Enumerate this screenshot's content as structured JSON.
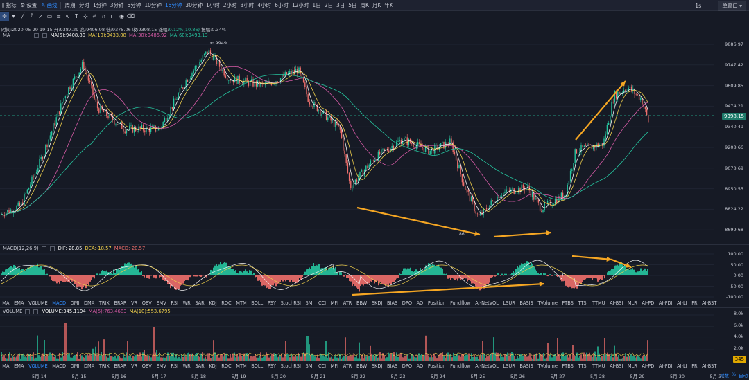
{
  "toolbar": {
    "indicators": "指标",
    "settings": "设置",
    "drawline": "画线",
    "period": "周期",
    "timeframes": [
      "分时",
      "1分钟",
      "3分钟",
      "5分钟",
      "10分钟",
      "15分钟",
      "30分钟",
      "1小时",
      "2小时",
      "3小时",
      "4小时",
      "6小时",
      "12小时",
      "1日",
      "2日",
      "3日",
      "5日",
      "周K",
      "月K",
      "年K"
    ],
    "active_timeframe": "15分钟",
    "right_interval": "1s",
    "window_select": "单窗口"
  },
  "ohlc": {
    "time_label": "时间:2020-05-29 19:15",
    "open": "开:9387.29",
    "high": "高:9406.98",
    "low": "低:9375.06",
    "close": "收:9398.15",
    "change_label": "涨幅:",
    "change_value": "0.12%(10.86)",
    "amplitude": "振幅:0.34%"
  },
  "ma_legend": {
    "name": "MA",
    "ma5": "MA(5):9408.80",
    "ma10": "MA(10):9433.08",
    "ma30": "MA(30):9486.92",
    "ma60": "MA(60):9493.13"
  },
  "price_axis": [
    "9886.97",
    "9747.42",
    "9609.85",
    "9474.21",
    "9340.49",
    "9208.66",
    "9078.69",
    "8950.55",
    "8824.22",
    "8699.68"
  ],
  "current_price": "9398.15",
  "high_marker": "9949",
  "low_marker": "86",
  "macd_legend": {
    "name": "MACD(12,26,9)",
    "dif": "DIF:-28.85",
    "dea": "DEA:-18.57",
    "macd": "MACD:-20.57"
  },
  "macd_axis": [
    "100.00",
    "50.00",
    "0.00",
    "-50.00",
    "-100.00"
  ],
  "indicator_tabs": [
    "MA",
    "EMA",
    "VOLUME",
    "MACD",
    "DMI",
    "DMA",
    "TRIX",
    "BRAR",
    "VR",
    "OBV",
    "EMV",
    "RSI",
    "WR",
    "SAR",
    "KDJ",
    "ROC",
    "MTM",
    "BOLL",
    "PSY",
    "StochRSI",
    "SMI",
    "CCI",
    "MFI",
    "ATR",
    "BBW",
    "SKDJ",
    "BIAS",
    "DPO",
    "AO",
    "Position",
    "Fundflow",
    "AI-NetVOL",
    "LSUR",
    "BASIS",
    "TVolume",
    "FTBS",
    "TTSI",
    "TTMU",
    "AI-BSI",
    "MLR",
    "AI-PD",
    "AI-FDI",
    "AI-LI",
    "FR",
    "AI-BST"
  ],
  "active_tab_top": "MACD",
  "active_tab_bottom": "VOLUME",
  "volume_legend": {
    "name": "VOLUME",
    "volume": "VOLUME:345.1194",
    "ma5": "MA(5):763.4683",
    "ma10": "MA(10):553.6795"
  },
  "volume_axis": [
    "8.0k",
    "6.0k",
    "4.0k",
    "2.0k"
  ],
  "current_volume": "345",
  "dates": [
    "5月 14",
    "5月 15",
    "5月 16",
    "5月 17",
    "5月 18",
    "5月 19",
    "5月 20",
    "5月 21",
    "5月 22",
    "5月 23",
    "5月 24",
    "5月 25",
    "5月 26",
    "5月 27",
    "5月 28",
    "5月 29",
    "5月 30",
    "5月 31"
  ],
  "bottom_controls": [
    "对数",
    "%",
    "自动"
  ],
  "colors": {
    "up": "#26c6a0",
    "down": "#ef6f6c",
    "ma5": "#f5f5f5",
    "ma10": "#f0d04c",
    "ma30": "#d65ba6",
    "ma60": "#26c6a0",
    "accent": "#2f8cff",
    "arrow": "#f5a623"
  }
}
